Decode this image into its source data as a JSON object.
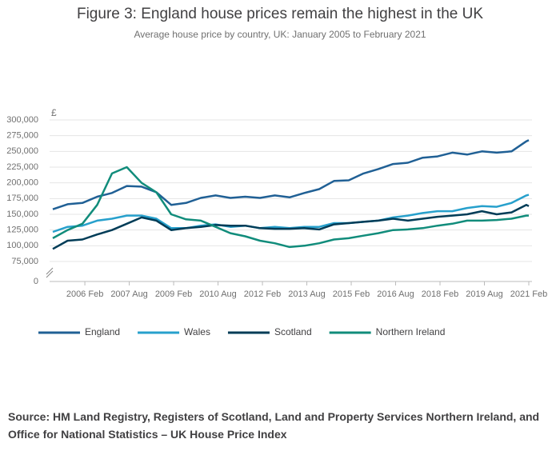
{
  "chart_data": {
    "type": "line",
    "title": "Figure 3: England house prices remain the highest in the UK",
    "subtitle": "Average house price by country, UK: January 2005 to February 2021",
    "y_unit_label": "£",
    "x": [
      "2005 Jan",
      "2005 Jul",
      "2006 Jan",
      "2006 Jul",
      "2007 Jan",
      "2007 Jul",
      "2008 Jan",
      "2008 Jul",
      "2009 Jan",
      "2009 Jul",
      "2010 Jan",
      "2010 Jul",
      "2011 Jan",
      "2011 Jul",
      "2012 Jan",
      "2012 Jul",
      "2013 Jan",
      "2013 Jul",
      "2014 Jan",
      "2014 Jul",
      "2015 Jan",
      "2015 Jul",
      "2016 Jan",
      "2016 Jul",
      "2017 Jan",
      "2017 Jul",
      "2018 Jan",
      "2018 Jul",
      "2019 Jan",
      "2019 Jul",
      "2020 Jan",
      "2020 Jul",
      "2021 Jan",
      "2021 Feb"
    ],
    "series": [
      {
        "name": "England",
        "color": "#206095",
        "values": [
          158000,
          166000,
          168000,
          178000,
          184000,
          195000,
          194000,
          185000,
          165000,
          168000,
          176000,
          180000,
          176000,
          178000,
          176000,
          180000,
          177000,
          184000,
          190000,
          203000,
          204000,
          215000,
          222000,
          230000,
          232000,
          240000,
          242000,
          248000,
          245000,
          250000,
          248000,
          250000,
          266000,
          268000
        ]
      },
      {
        "name": "Wales",
        "color": "#27a0cc",
        "values": [
          122000,
          130000,
          132000,
          140000,
          143000,
          148000,
          148000,
          143000,
          128000,
          128000,
          132000,
          134000,
          130000,
          132000,
          128000,
          130000,
          128000,
          130000,
          130000,
          136000,
          136000,
          138000,
          140000,
          145000,
          148000,
          152000,
          155000,
          155000,
          160000,
          163000,
          162000,
          168000,
          180000,
          181000
        ]
      },
      {
        "name": "Scotland",
        "color": "#003c57",
        "values": [
          95000,
          108000,
          110000,
          118000,
          125000,
          135000,
          145000,
          140000,
          125000,
          128000,
          130000,
          133000,
          132000,
          132000,
          128000,
          127000,
          127000,
          128000,
          126000,
          134000,
          136000,
          138000,
          140000,
          143000,
          140000,
          143000,
          146000,
          148000,
          150000,
          155000,
          150000,
          153000,
          165000,
          163000
        ]
      },
      {
        "name": "Northern Ireland",
        "color": "#118c7b",
        "values": [
          112000,
          125000,
          135000,
          165000,
          215000,
          225000,
          200000,
          185000,
          150000,
          142000,
          140000,
          130000,
          120000,
          115000,
          108000,
          104000,
          98000,
          100000,
          104000,
          110000,
          112000,
          116000,
          120000,
          125000,
          126000,
          128000,
          132000,
          135000,
          140000,
          140000,
          141000,
          143000,
          148000,
          148000
        ]
      }
    ],
    "ylim": [
      0,
      300000
    ],
    "yticks": [
      0,
      {
        "value": 75000,
        "label": "75,000"
      },
      {
        "value": 100000,
        "label": "100,000"
      },
      {
        "value": 125000,
        "label": "125,000"
      },
      {
        "value": 150000,
        "label": "150,000"
      },
      {
        "value": 175000,
        "label": "175,000"
      },
      {
        "value": 200000,
        "label": "200,000"
      },
      {
        "value": 225000,
        "label": "225,000"
      },
      {
        "value": 250000,
        "label": "250,000"
      },
      {
        "value": 275000,
        "label": "275,000"
      },
      {
        "value": 300000,
        "label": "300,000"
      }
    ],
    "xticks": [
      "2006 Feb",
      "2007 Aug",
      "2009 Feb",
      "2010 Aug",
      "2012 Feb",
      "2013 Aug",
      "2015 Feb",
      "2016 Aug",
      "2018 Feb",
      "2019 Aug",
      "2021 Feb"
    ],
    "axis_break": true,
    "grid": true,
    "legend_position": "bottom",
    "source": "Source: HM Land Registry, Registers of Scotland, Land and Property Services Northern Ireland, and Office for National Statistics – UK House Price Index"
  }
}
